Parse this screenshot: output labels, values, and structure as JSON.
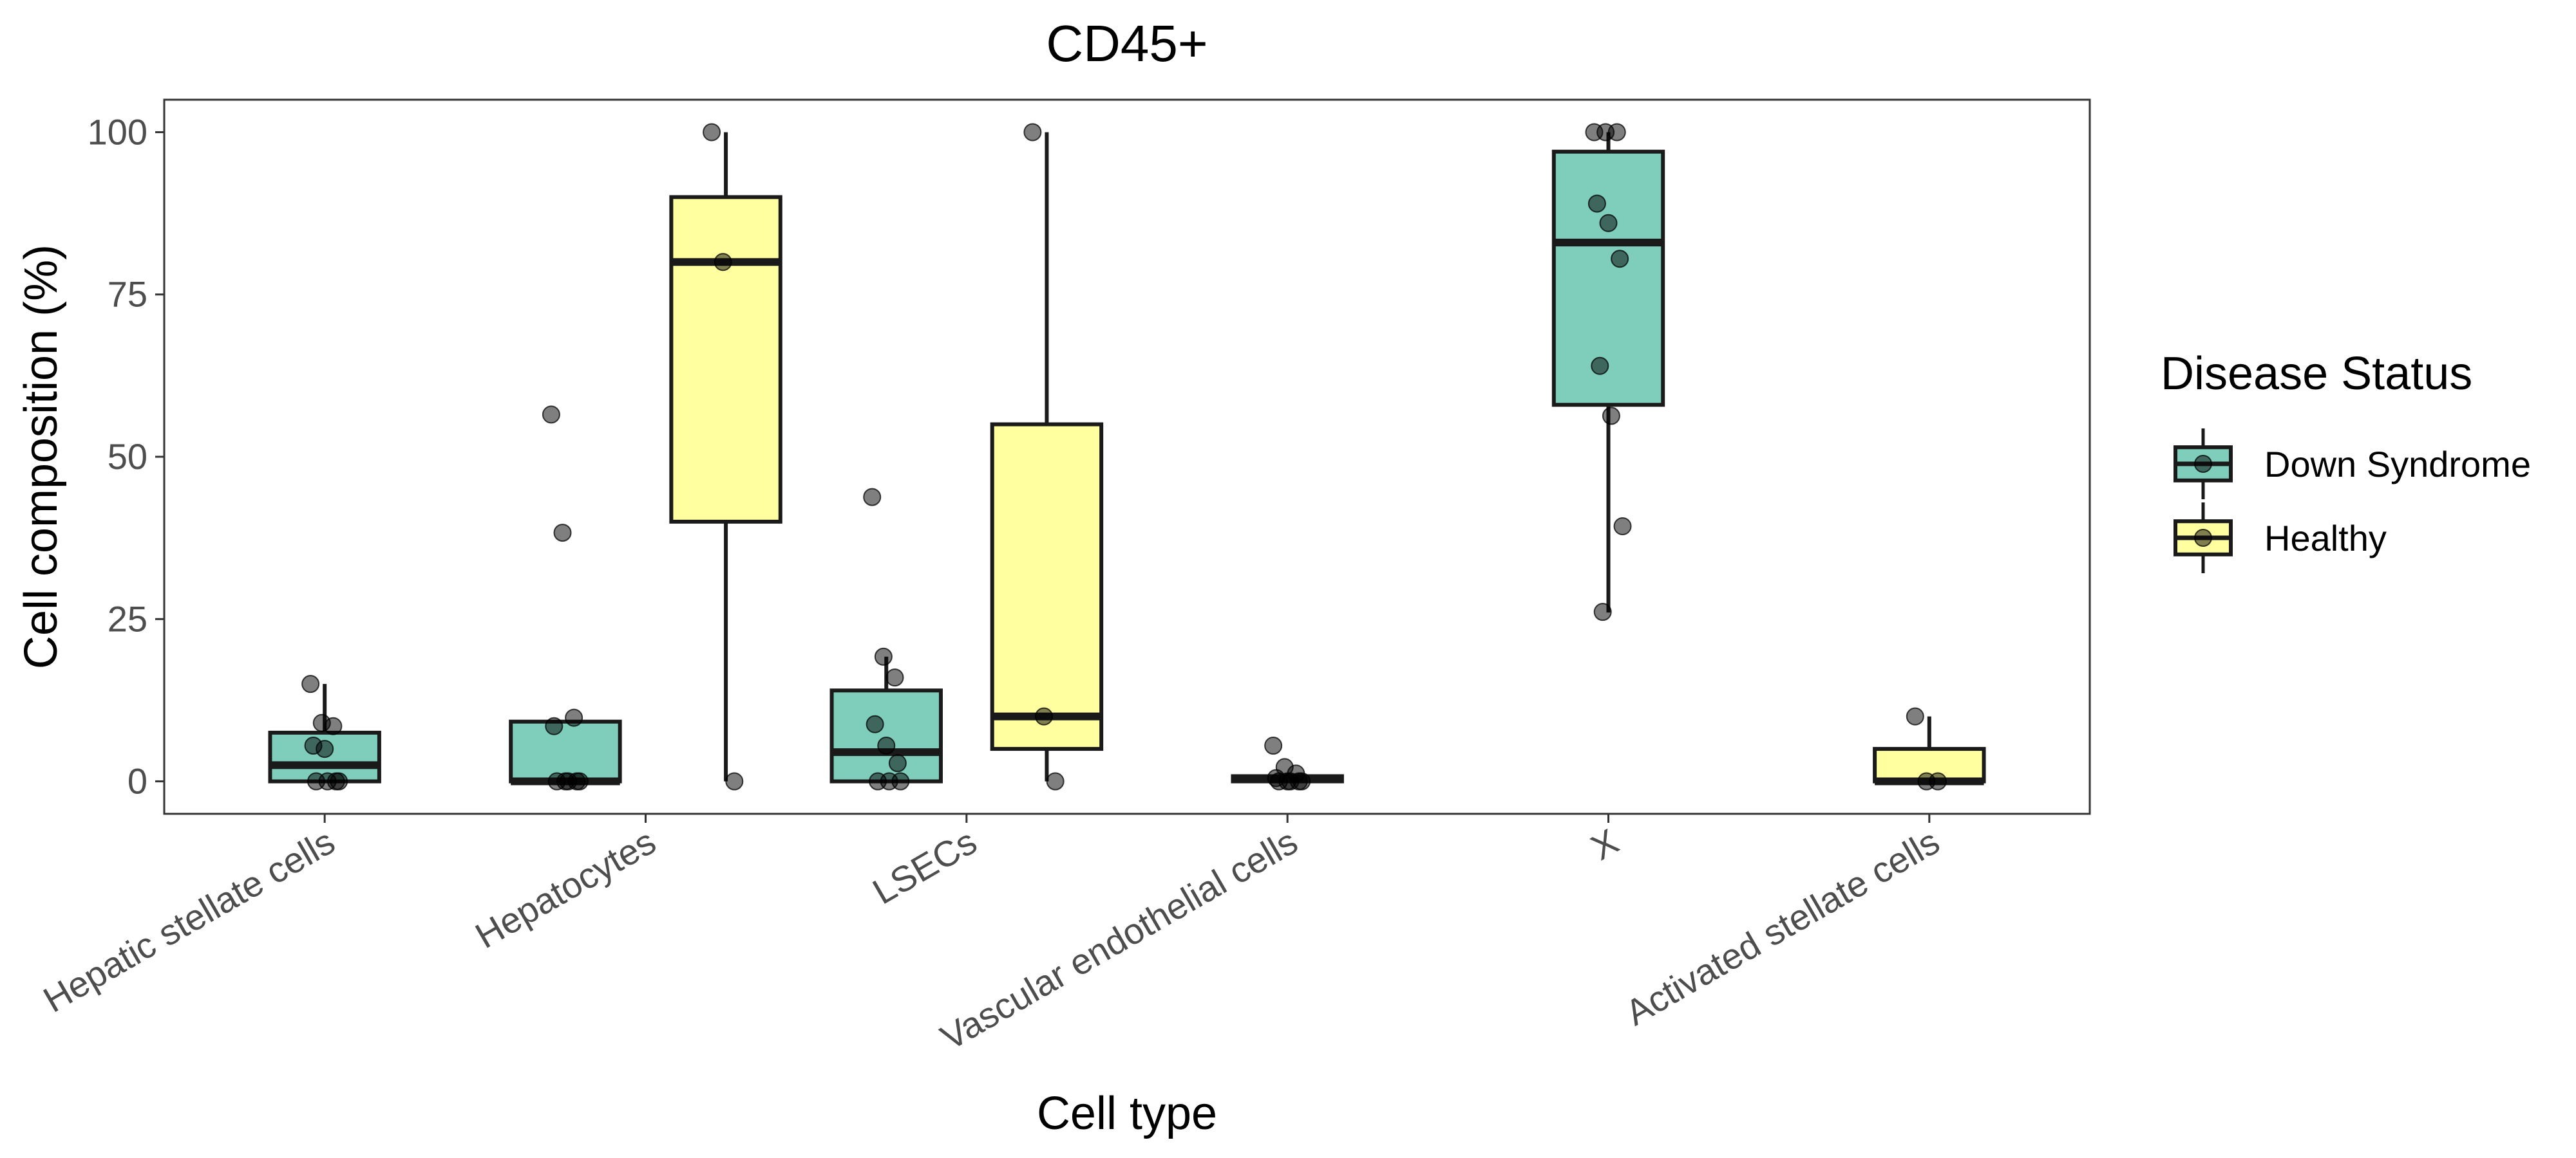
{
  "chart_data": {
    "type": "boxplot",
    "title": "CD45+",
    "xlabel": "Cell type",
    "ylabel": "Cell composition (%)",
    "ylim": [
      -5,
      105
    ],
    "yticks": [
      0,
      25,
      50,
      75,
      100
    ],
    "grid": false,
    "categories": [
      "Hepatic stellate cells",
      "Hepatocytes",
      "LSECs",
      "Vascular endothelial cells",
      "X",
      "Activated stellate cells"
    ],
    "legend": {
      "title": "Disease Status",
      "position": "right",
      "items": [
        {
          "label": "Down Syndrome",
          "color": "#7fcdbb"
        },
        {
          "label": "Healthy",
          "color": "#ffff9f"
        }
      ]
    },
    "groups": [
      {
        "category": "Hepatic stellate cells",
        "series": "Down Syndrome",
        "min": 0,
        "q1": 0,
        "median": 2.5,
        "q3": 7.5,
        "max": 15,
        "points": [
          15,
          9,
          8.5,
          5.5,
          5,
          0,
          0,
          0,
          0
        ]
      },
      {
        "category": "Hepatocytes",
        "series": "Down Syndrome",
        "min": 0,
        "q1": 0,
        "median": 0,
        "q3": 9.2,
        "max": 9.2,
        "points": [
          56.5,
          38.3,
          9.8,
          8.5,
          0,
          0,
          0,
          0,
          0
        ]
      },
      {
        "category": "Hepatocytes",
        "series": "Healthy",
        "min": 0,
        "q1": 40,
        "median": 80,
        "q3": 90,
        "max": 100,
        "points": [
          100,
          80,
          0
        ]
      },
      {
        "category": "LSECs",
        "series": "Down Syndrome",
        "min": 0,
        "q1": 0,
        "median": 4.5,
        "q3": 14,
        "max": 19.2,
        "points": [
          43.8,
          19.2,
          16,
          8.8,
          5.5,
          2.8,
          0,
          0,
          0
        ]
      },
      {
        "category": "LSECs",
        "series": "Healthy",
        "min": 0,
        "q1": 5,
        "median": 10,
        "q3": 55,
        "max": 100,
        "points": [
          100,
          10,
          0
        ]
      },
      {
        "category": "Vascular endothelial cells",
        "series": "Down Syndrome",
        "min": 0,
        "q1": 0,
        "median": 0.3,
        "q3": 0.8,
        "max": 0.8,
        "points": [
          5.5,
          2.2,
          1.2,
          0.5,
          0,
          0,
          0,
          0,
          0
        ]
      },
      {
        "category": "X",
        "series": "Down Syndrome",
        "min": 26,
        "q1": 58,
        "median": 83,
        "q3": 97,
        "max": 100,
        "points": [
          100,
          100,
          100,
          89,
          86,
          80.5,
          64,
          56.3,
          39.3,
          26.1
        ]
      },
      {
        "category": "Activated stellate cells",
        "series": "Healthy",
        "min": 0,
        "q1": 0,
        "median": 0,
        "q3": 5,
        "max": 10,
        "points": [
          10,
          0,
          0
        ]
      }
    ]
  }
}
